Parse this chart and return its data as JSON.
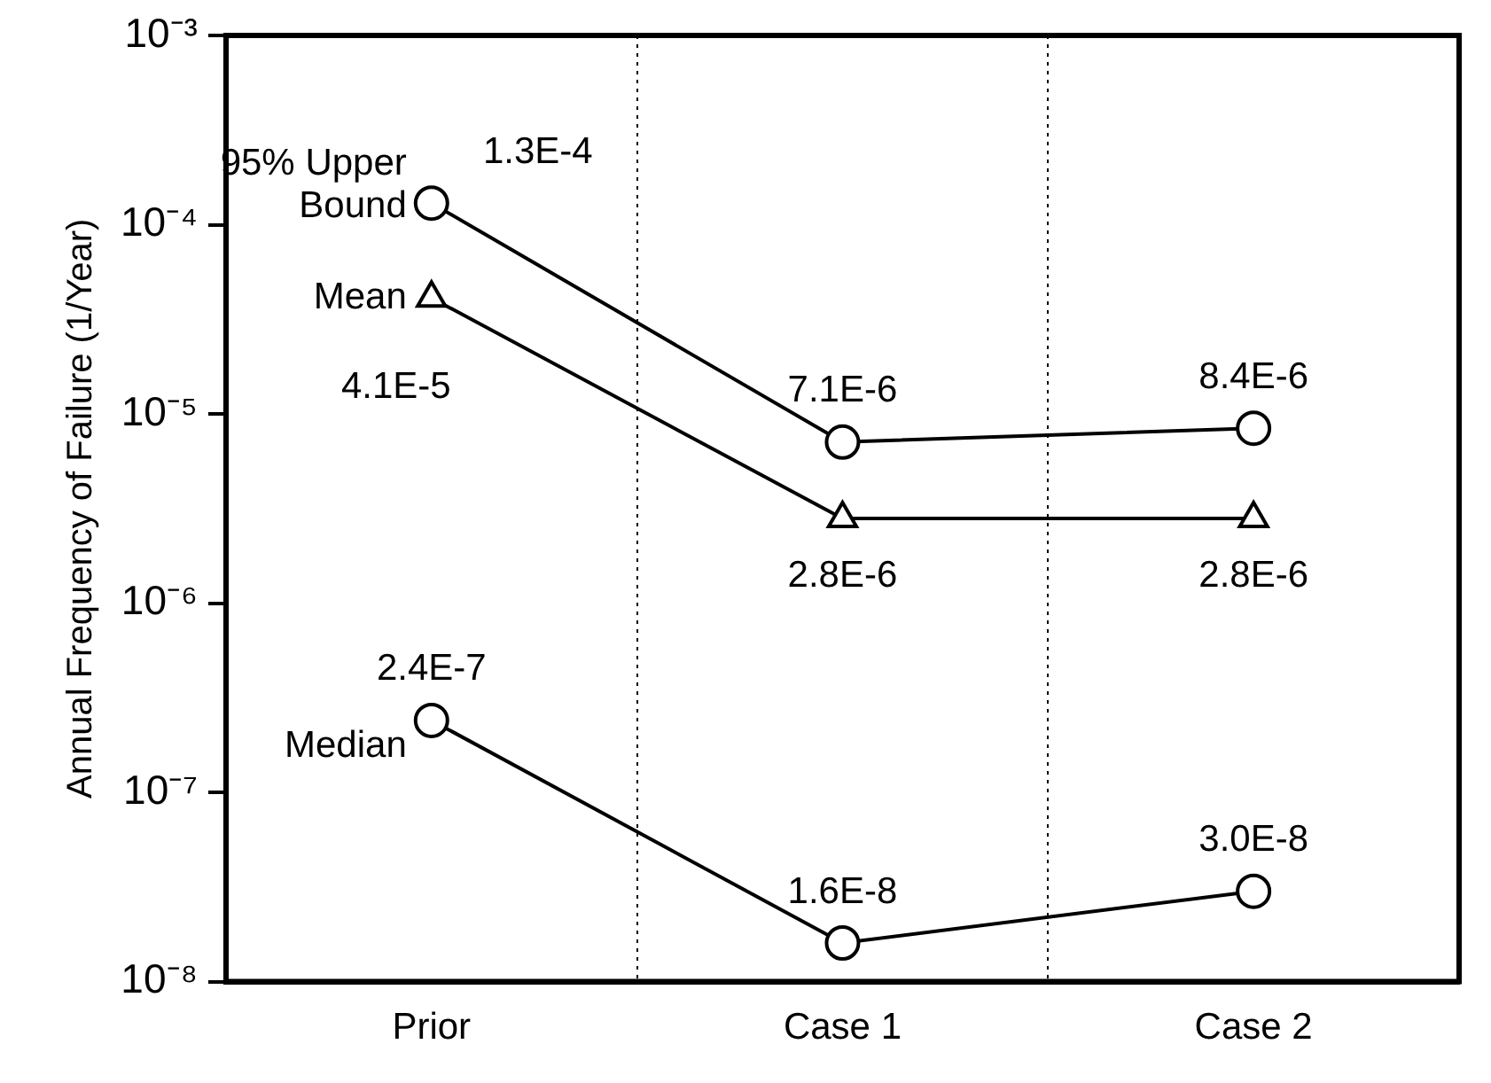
{
  "chart_data": {
    "type": "line",
    "ylabel": "Annual Frequency of Failure (1/Year)",
    "categories": [
      "Prior",
      "Case 1",
      "Case 2"
    ],
    "log": true,
    "ylim": [
      1e-08,
      0.001
    ],
    "yticks": [
      {
        "value": 1e-08,
        "label": "10⁻⁸"
      },
      {
        "value": 1e-07,
        "label": "10⁻⁷"
      },
      {
        "value": 1e-06,
        "label": "10⁻⁶"
      },
      {
        "value": 1e-05,
        "label": "10⁻⁵"
      },
      {
        "value": 0.0001,
        "label": "10⁻⁴"
      },
      {
        "value": 0.001,
        "label": "10⁻³"
      }
    ],
    "grid": "x",
    "legend": false,
    "series": [
      {
        "name": "95% Upper Bound",
        "color": "#000000",
        "marker": "circle",
        "values": [
          0.00013,
          7.1e-06,
          8.4e-06
        ],
        "value_labels": [
          "1.3E-4",
          "7.1E-6",
          "8.4E-6"
        ]
      },
      {
        "name": "Mean",
        "color": "#000000",
        "marker": "triangle",
        "values": [
          4.1e-05,
          2.8e-06,
          2.8e-06
        ],
        "value_labels": [
          "4.1E-5",
          "2.8E-6",
          "2.8E-6"
        ]
      },
      {
        "name": "Median",
        "color": "#000000",
        "marker": "circle",
        "values": [
          2.4e-07,
          1.6e-08,
          3e-08
        ],
        "value_labels": [
          "2.4E-7",
          "1.6E-8",
          "3.0E-8"
        ]
      }
    ]
  }
}
